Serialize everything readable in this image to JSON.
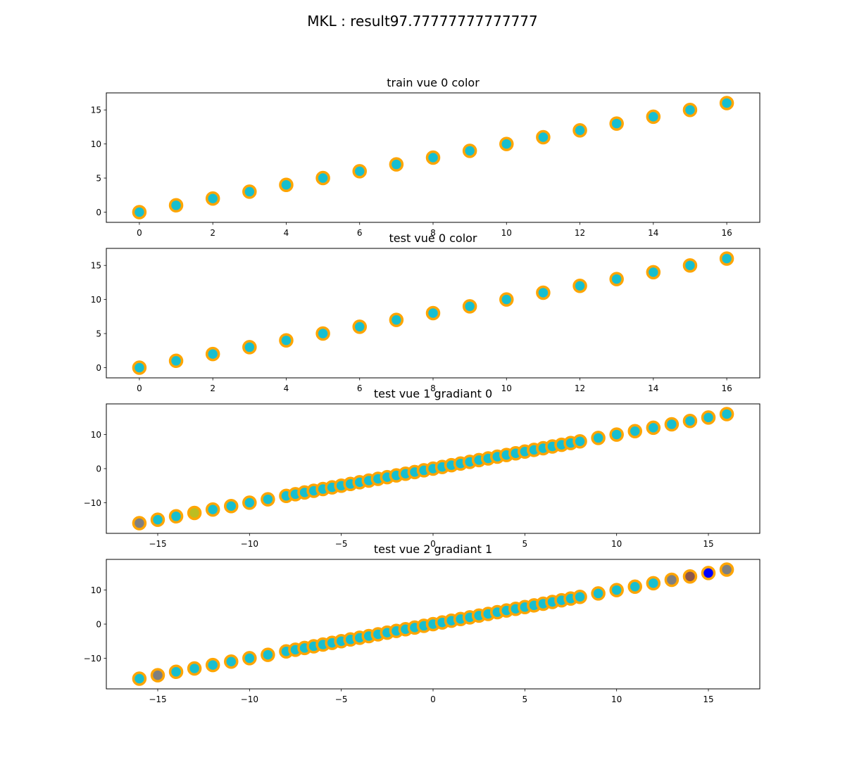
{
  "figure": {
    "suptitle": "MKL : result97.77777777777777"
  },
  "marker_colors": {
    "face_default": "#17becf",
    "edge_default": "#ffa500",
    "face_olive": "#bcbd22",
    "face_gray": "#7f7f7f",
    "face_brown": "#8c564b",
    "face_blue": "#0000ff"
  },
  "chart_data": [
    {
      "type": "scatter",
      "title": "train vue 0 color",
      "xlim": [
        -0.9,
        16.9
      ],
      "ylim": [
        -1.5,
        17.5
      ],
      "xticks": [
        0,
        2,
        4,
        6,
        8,
        10,
        12,
        14,
        16
      ],
      "yticks": [
        0,
        5,
        10,
        15
      ],
      "points": [
        {
          "x": 0,
          "y": 0
        },
        {
          "x": 1,
          "y": 1
        },
        {
          "x": 2,
          "y": 2
        },
        {
          "x": 3,
          "y": 3
        },
        {
          "x": 4,
          "y": 4
        },
        {
          "x": 5,
          "y": 5
        },
        {
          "x": 6,
          "y": 6
        },
        {
          "x": 7,
          "y": 7
        },
        {
          "x": 8,
          "y": 8
        },
        {
          "x": 9,
          "y": 9
        },
        {
          "x": 10,
          "y": 10
        },
        {
          "x": 11,
          "y": 11
        },
        {
          "x": 12,
          "y": 12
        },
        {
          "x": 13,
          "y": 13
        },
        {
          "x": 14,
          "y": 14
        },
        {
          "x": 15,
          "y": 15
        },
        {
          "x": 16,
          "y": 16
        }
      ]
    },
    {
      "type": "scatter",
      "title": "test vue 0 color",
      "xlim": [
        -0.9,
        16.9
      ],
      "ylim": [
        -1.5,
        17.5
      ],
      "xticks": [
        0,
        2,
        4,
        6,
        8,
        10,
        12,
        14,
        16
      ],
      "yticks": [
        0,
        5,
        10,
        15
      ],
      "points": [
        {
          "x": 0,
          "y": 0
        },
        {
          "x": 1,
          "y": 1
        },
        {
          "x": 2,
          "y": 2
        },
        {
          "x": 3,
          "y": 3
        },
        {
          "x": 4,
          "y": 4
        },
        {
          "x": 5,
          "y": 5
        },
        {
          "x": 6,
          "y": 6
        },
        {
          "x": 7,
          "y": 7
        },
        {
          "x": 8,
          "y": 8
        },
        {
          "x": 9,
          "y": 9
        },
        {
          "x": 10,
          "y": 10
        },
        {
          "x": 11,
          "y": 11
        },
        {
          "x": 12,
          "y": 12
        },
        {
          "x": 13,
          "y": 13
        },
        {
          "x": 14,
          "y": 14
        },
        {
          "x": 15,
          "y": 15
        },
        {
          "x": 16,
          "y": 16
        }
      ]
    },
    {
      "type": "scatter",
      "title": "test vue 1 gradiant 0",
      "xlim": [
        -17.8,
        17.8
      ],
      "ylim": [
        -19,
        19
      ],
      "xticks": [
        -15,
        -10,
        -5,
        0,
        5,
        10,
        15
      ],
      "xticklabels": [
        "−15",
        "−10",
        "−5",
        "0",
        "5",
        "10",
        "15"
      ],
      "yticks": [
        -10,
        0,
        10
      ],
      "yticklabels": [
        "−10",
        "0",
        "10"
      ],
      "points": [
        {
          "x": -16,
          "y": -16,
          "face": "#7f7f7f"
        },
        {
          "x": -15,
          "y": -15
        },
        {
          "x": -14,
          "y": -14
        },
        {
          "x": -13,
          "y": -13,
          "face": "#bcbd22"
        },
        {
          "x": -12,
          "y": -12
        },
        {
          "x": -11,
          "y": -11
        },
        {
          "x": -10,
          "y": -10
        },
        {
          "x": -9,
          "y": -9
        },
        {
          "x": -8,
          "y": -8
        },
        {
          "x": -7.5,
          "y": -7.5
        },
        {
          "x": -7,
          "y": -7
        },
        {
          "x": -6.5,
          "y": -6.5
        },
        {
          "x": -6,
          "y": -6
        },
        {
          "x": -5.5,
          "y": -5.5
        },
        {
          "x": -5,
          "y": -5
        },
        {
          "x": -4.5,
          "y": -4.5
        },
        {
          "x": -4,
          "y": -4
        },
        {
          "x": -3.5,
          "y": -3.5
        },
        {
          "x": -3,
          "y": -3
        },
        {
          "x": -2.5,
          "y": -2.5
        },
        {
          "x": -2,
          "y": -2
        },
        {
          "x": -1.5,
          "y": -1.5
        },
        {
          "x": -1,
          "y": -1
        },
        {
          "x": -0.5,
          "y": -0.5
        },
        {
          "x": 0,
          "y": 0
        },
        {
          "x": 0.5,
          "y": 0.5
        },
        {
          "x": 1,
          "y": 1
        },
        {
          "x": 1.5,
          "y": 1.5
        },
        {
          "x": 2,
          "y": 2
        },
        {
          "x": 2.5,
          "y": 2.5
        },
        {
          "x": 3,
          "y": 3
        },
        {
          "x": 3.5,
          "y": 3.5
        },
        {
          "x": 4,
          "y": 4
        },
        {
          "x": 4.5,
          "y": 4.5
        },
        {
          "x": 5,
          "y": 5
        },
        {
          "x": 5.5,
          "y": 5.5
        },
        {
          "x": 6,
          "y": 6
        },
        {
          "x": 6.5,
          "y": 6.5
        },
        {
          "x": 7,
          "y": 7
        },
        {
          "x": 7.5,
          "y": 7.5
        },
        {
          "x": 8,
          "y": 8
        },
        {
          "x": 9,
          "y": 9
        },
        {
          "x": 10,
          "y": 10
        },
        {
          "x": 11,
          "y": 11
        },
        {
          "x": 12,
          "y": 12
        },
        {
          "x": 13,
          "y": 13
        },
        {
          "x": 14,
          "y": 14
        },
        {
          "x": 15,
          "y": 15
        },
        {
          "x": 16,
          "y": 16
        }
      ]
    },
    {
      "type": "scatter",
      "title": "test vue 2 gradiant 1",
      "xlim": [
        -17.8,
        17.8
      ],
      "ylim": [
        -19,
        19
      ],
      "xticks": [
        -15,
        -10,
        -5,
        0,
        5,
        10,
        15
      ],
      "xticklabels": [
        "−15",
        "−10",
        "−5",
        "0",
        "5",
        "10",
        "15"
      ],
      "yticks": [
        -10,
        0,
        10
      ],
      "yticklabels": [
        "−10",
        "0",
        "10"
      ],
      "points": [
        {
          "x": -16,
          "y": -16
        },
        {
          "x": -15,
          "y": -15,
          "face": "#7f7f7f"
        },
        {
          "x": -14,
          "y": -14
        },
        {
          "x": -13,
          "y": -13
        },
        {
          "x": -12,
          "y": -12
        },
        {
          "x": -11,
          "y": -11
        },
        {
          "x": -10,
          "y": -10
        },
        {
          "x": -9,
          "y": -9
        },
        {
          "x": -8,
          "y": -8
        },
        {
          "x": -7.5,
          "y": -7.5
        },
        {
          "x": -7,
          "y": -7
        },
        {
          "x": -6.5,
          "y": -6.5
        },
        {
          "x": -6,
          "y": -6
        },
        {
          "x": -5.5,
          "y": -5.5
        },
        {
          "x": -5,
          "y": -5
        },
        {
          "x": -4.5,
          "y": -4.5
        },
        {
          "x": -4,
          "y": -4
        },
        {
          "x": -3.5,
          "y": -3.5
        },
        {
          "x": -3,
          "y": -3
        },
        {
          "x": -2.5,
          "y": -2.5
        },
        {
          "x": -2,
          "y": -2
        },
        {
          "x": -1.5,
          "y": -1.5
        },
        {
          "x": -1,
          "y": -1
        },
        {
          "x": -0.5,
          "y": -0.5
        },
        {
          "x": 0,
          "y": 0
        },
        {
          "x": 0.5,
          "y": 0.5
        },
        {
          "x": 1,
          "y": 1
        },
        {
          "x": 1.5,
          "y": 1.5
        },
        {
          "x": 2,
          "y": 2
        },
        {
          "x": 2.5,
          "y": 2.5
        },
        {
          "x": 3,
          "y": 3
        },
        {
          "x": 3.5,
          "y": 3.5
        },
        {
          "x": 4,
          "y": 4
        },
        {
          "x": 4.5,
          "y": 4.5
        },
        {
          "x": 5,
          "y": 5
        },
        {
          "x": 5.5,
          "y": 5.5
        },
        {
          "x": 6,
          "y": 6
        },
        {
          "x": 6.5,
          "y": 6.5
        },
        {
          "x": 7,
          "y": 7
        },
        {
          "x": 7.5,
          "y": 7.5
        },
        {
          "x": 8,
          "y": 8
        },
        {
          "x": 9,
          "y": 9
        },
        {
          "x": 10,
          "y": 10
        },
        {
          "x": 11,
          "y": 11
        },
        {
          "x": 12,
          "y": 12
        },
        {
          "x": 13,
          "y": 13,
          "face": "#7f7f7f"
        },
        {
          "x": 14,
          "y": 14,
          "face": "#8c564b"
        },
        {
          "x": 15,
          "y": 15,
          "face": "#0000ff"
        },
        {
          "x": 16,
          "y": 16,
          "face": "#7f7f7f"
        }
      ]
    }
  ]
}
